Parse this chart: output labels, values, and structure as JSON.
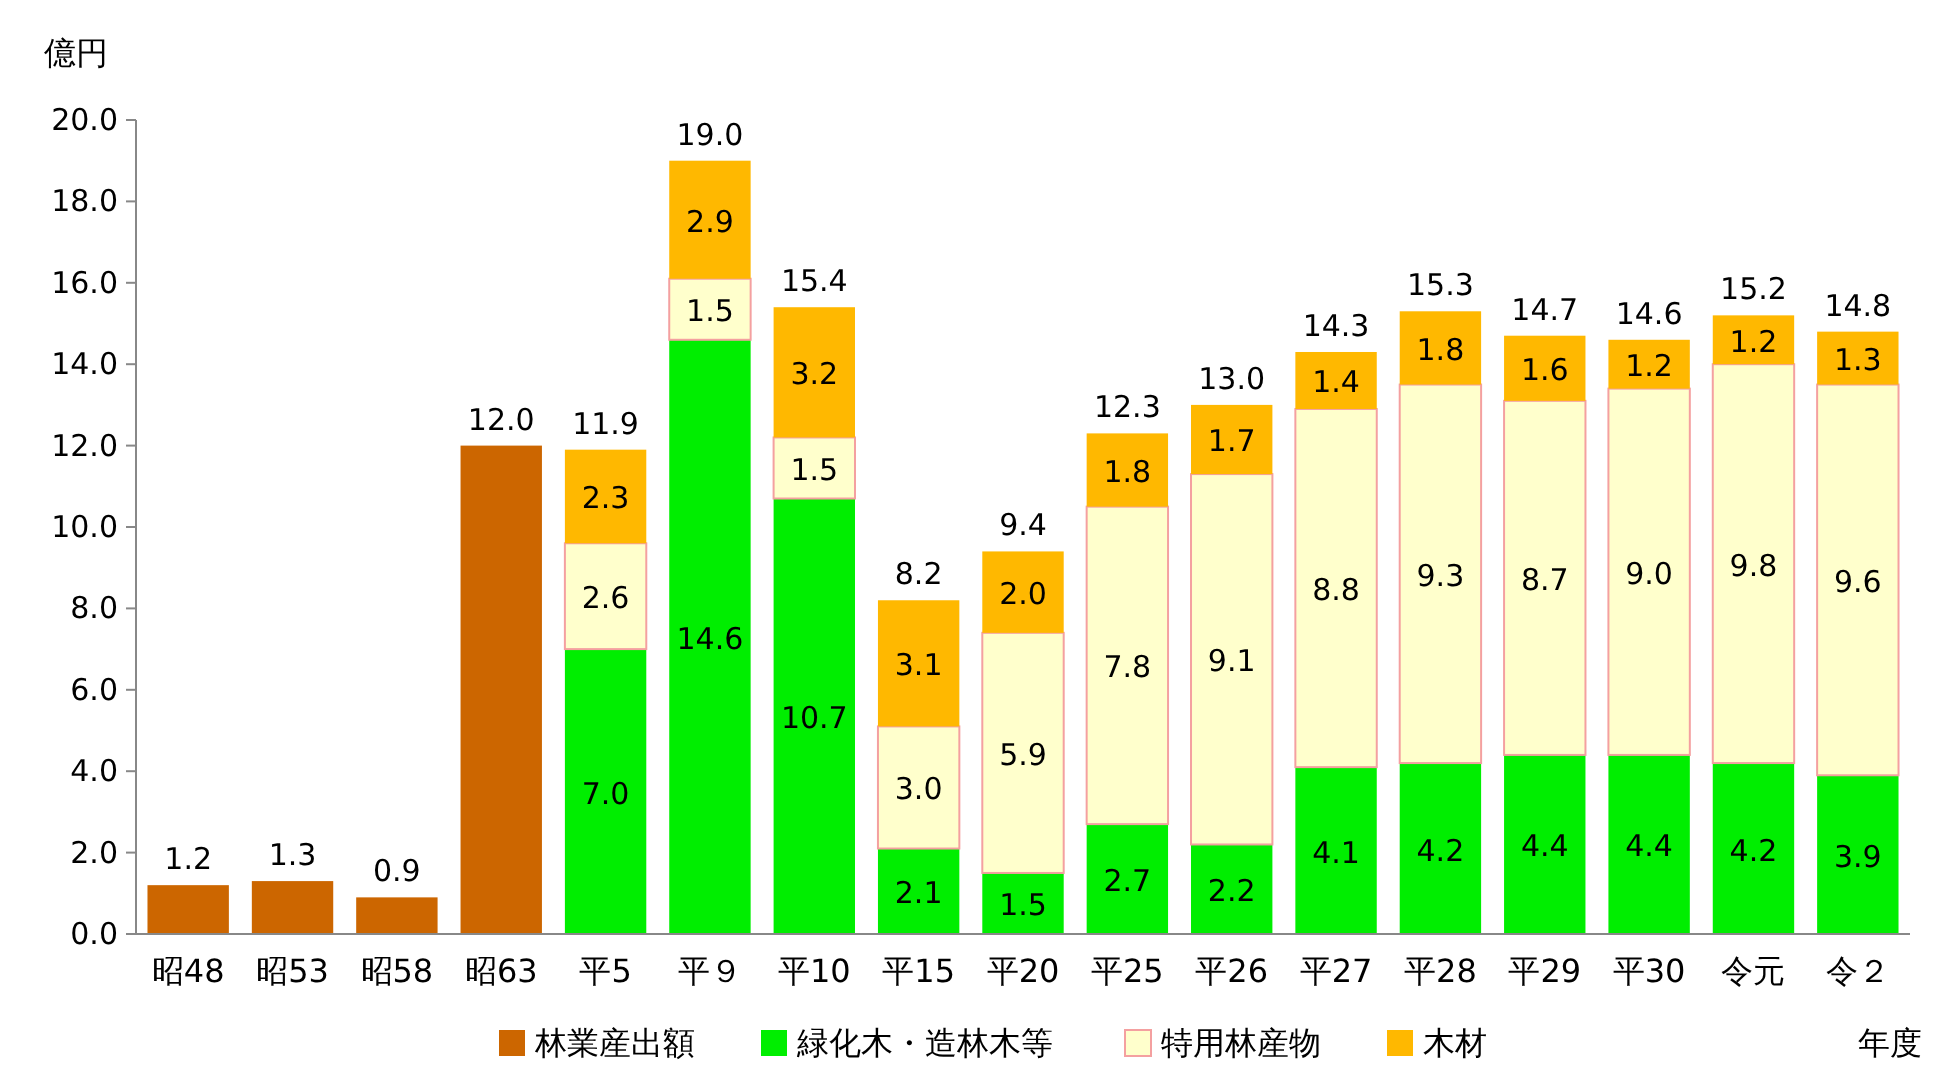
{
  "chart_data": {
    "type": "bar",
    "stacked": true,
    "ylabel": "億円",
    "xlabel": "年度",
    "categories": [
      "昭48",
      "昭53",
      "昭58",
      "昭63",
      "平5",
      "平９",
      "平10",
      "平15",
      "平20",
      "平25",
      "平26",
      "平27",
      "平28",
      "平29",
      "平30",
      "令元",
      "令２"
    ],
    "series": [
      {
        "name": "林業産出額",
        "color": "#cc6600",
        "values": [
          1.2,
          1.3,
          0.9,
          12.0,
          null,
          null,
          null,
          null,
          null,
          null,
          null,
          null,
          null,
          null,
          null,
          null,
          null
        ],
        "value_labels": [
          "1.2",
          "1.3",
          "0.9",
          "12.0",
          null,
          null,
          null,
          null,
          null,
          null,
          null,
          null,
          null,
          null,
          null,
          null,
          null
        ]
      },
      {
        "name": "緑化木・造林木等",
        "color": "#00ee00",
        "values": [
          null,
          null,
          null,
          null,
          7.0,
          14.6,
          10.7,
          2.1,
          1.5,
          2.7,
          2.2,
          4.1,
          4.2,
          4.4,
          4.4,
          4.2,
          3.9
        ],
        "value_labels": [
          null,
          null,
          null,
          null,
          "7.0",
          "14.6",
          "10.7",
          "2.1",
          "1.5",
          "2.7",
          "2.2",
          "4.1",
          "4.2",
          "4.4",
          "4.4",
          "4.2",
          "3.9"
        ]
      },
      {
        "name": "特用林産物",
        "color": "#ffffcc",
        "values": [
          null,
          null,
          null,
          null,
          2.6,
          1.5,
          1.5,
          3.0,
          5.9,
          7.8,
          9.1,
          8.8,
          9.3,
          8.7,
          9.0,
          9.8,
          9.6
        ],
        "value_labels": [
          null,
          null,
          null,
          null,
          "2.6",
          "1.5",
          "1.5",
          "3.0",
          "5.9",
          "7.8",
          "9.1",
          "8.8",
          "9.3",
          "8.7",
          "9.0",
          "9.8",
          "9.6"
        ]
      },
      {
        "name": "木材",
        "color": "#ffb800",
        "values": [
          null,
          null,
          null,
          null,
          2.3,
          2.9,
          3.2,
          3.1,
          2.0,
          1.8,
          1.7,
          1.4,
          1.8,
          1.6,
          1.2,
          1.2,
          1.3
        ],
        "value_labels": [
          null,
          null,
          null,
          null,
          "2.3",
          "2.9",
          "3.2",
          "3.1",
          "2.0",
          "1.8",
          "1.7",
          "1.4",
          "1.8",
          "1.6",
          "1.2",
          "1.2",
          "1.3"
        ]
      }
    ],
    "totals": [
      null,
      null,
      null,
      null,
      "11.9",
      "19.0",
      "15.4",
      "8.2",
      "9.4",
      "12.3",
      "13.0",
      "14.3",
      "15.3",
      "14.7",
      "14.6",
      "15.2",
      "14.8"
    ],
    "legend": "bottom",
    "ylim": [
      0,
      20
    ],
    "yticks": [
      {
        "value": 0,
        "label": "0.0"
      },
      {
        "value": 2,
        "label": "2.0"
      },
      {
        "value": 4,
        "label": "4.0"
      },
      {
        "value": 6,
        "label": "6.0"
      },
      {
        "value": 8,
        "label": "8.0"
      },
      {
        "value": 10,
        "label": "10.0"
      },
      {
        "value": 12,
        "label": "12.0"
      },
      {
        "value": 14,
        "label": "14.0"
      },
      {
        "value": 16,
        "label": "16.0"
      },
      {
        "value": 18,
        "label": "18.0"
      },
      {
        "value": 20,
        "label": "20.0"
      }
    ]
  }
}
